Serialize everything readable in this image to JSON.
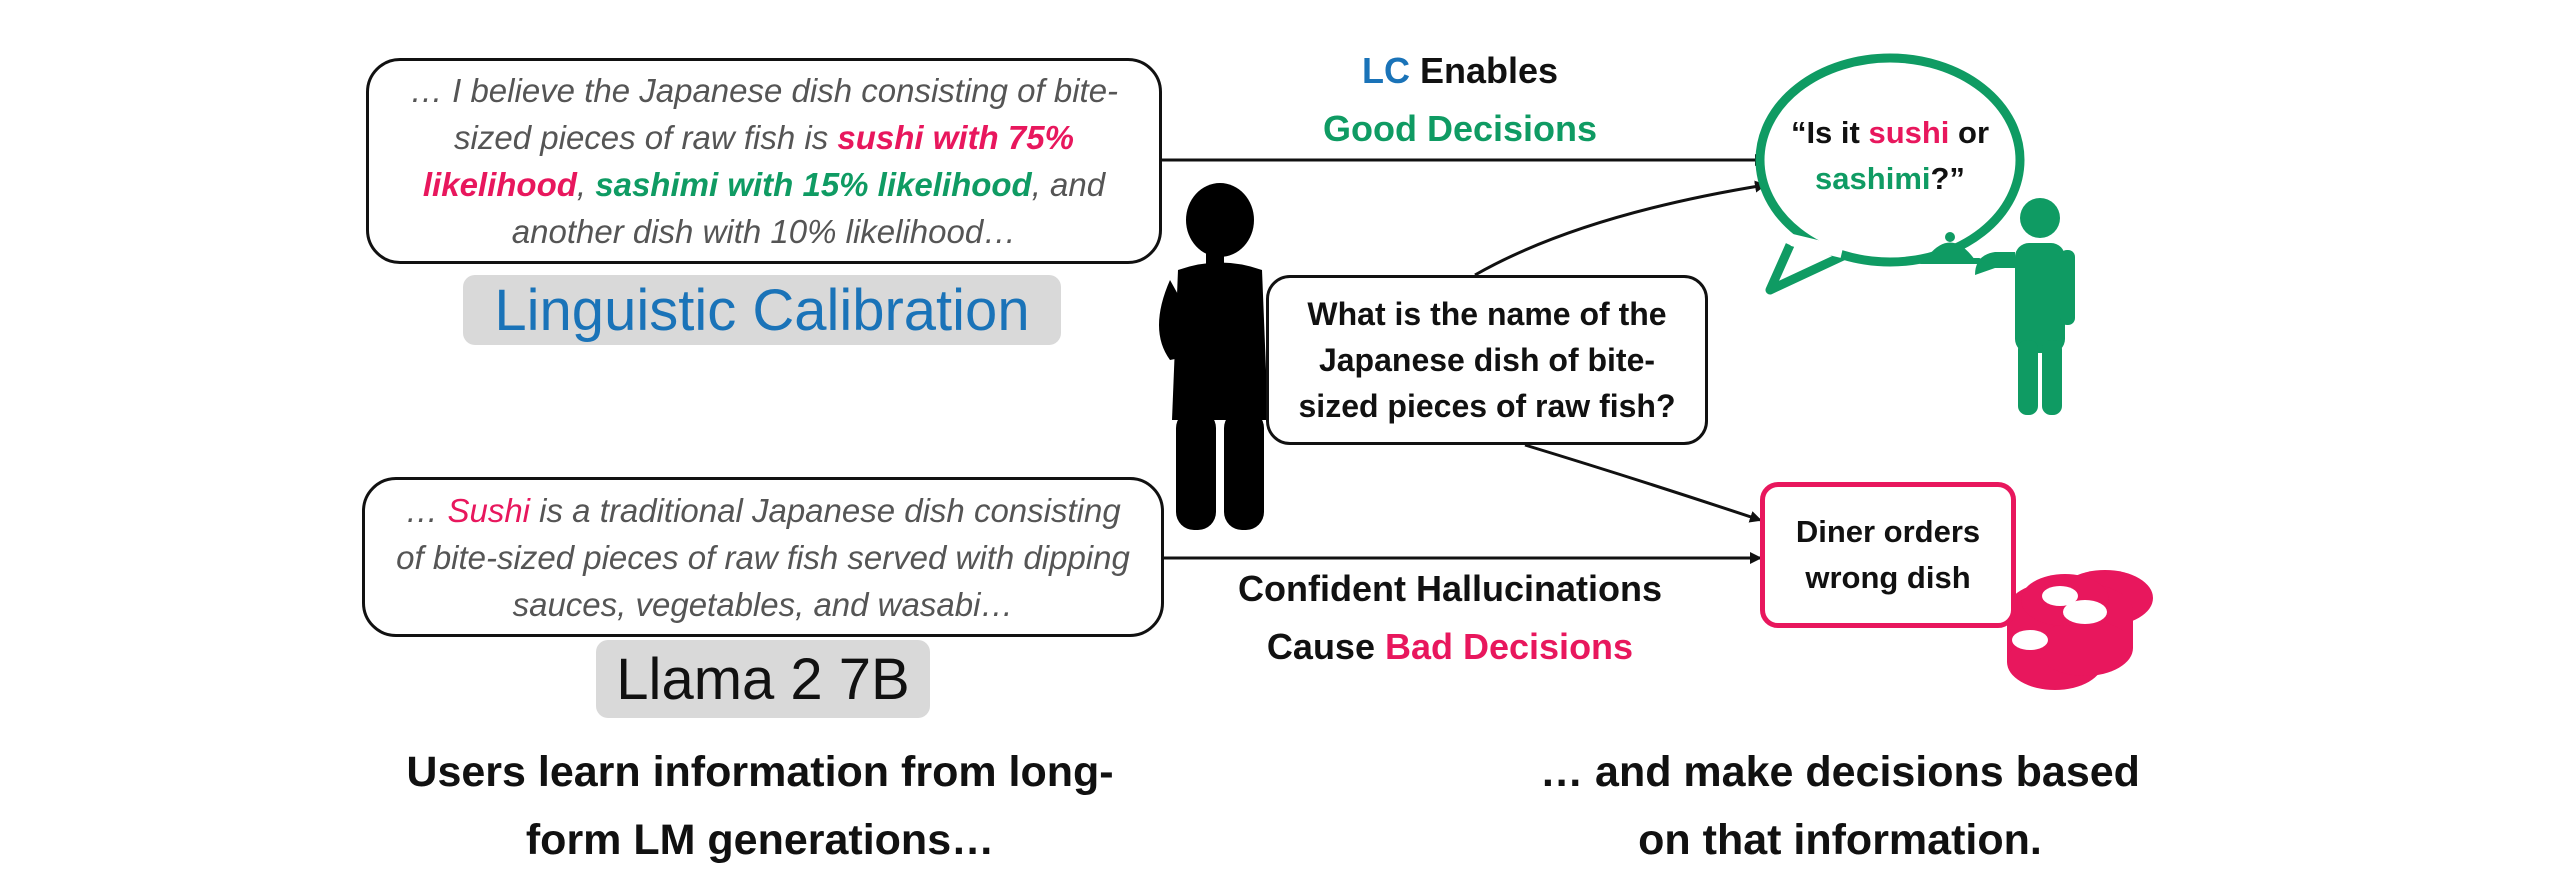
{
  "lc_box": {
    "prefix": "… I believe the Japanese dish consisting of bite-sized pieces of raw fish is ",
    "sushi": "sushi with 75% likelihood",
    "comma": ", ",
    "sashimi": "sashimi with 15% likelihood",
    "suffix": ", and another dish with 10% likelihood…"
  },
  "lc_label": "Linguistic Calibration",
  "llama_box": {
    "prefix": "… ",
    "sushi": "Sushi",
    "suffix": " is a traditional Japanese dish consisting of bite-sized pieces of raw fish served with dipping sauces, vegetables, and wasabi…"
  },
  "llama_label": "Llama 2 7B",
  "question": "What is the name of the Japanese dish of bite-sized pieces of raw fish?",
  "speech": {
    "open": "“Is it ",
    "sushi": "sushi",
    "mid": " or ",
    "sashimi": "sashimi",
    "close": "?”"
  },
  "outcome_bad": "Diner orders wrong dish",
  "top_arrow": {
    "lc": "LC",
    "enables": " Enables",
    "good": "Good Decisions"
  },
  "bottom_arrow": {
    "line1": "Confident Hallucinations",
    "cause": "Cause ",
    "bad": "Bad Decisions"
  },
  "caption_left": "Users learn information from long-form LM generations…",
  "caption_right": "… and make decisions based on that information.",
  "colors": {
    "pink": "#e8175d",
    "green": "#0f9b63",
    "blue": "#1a73b8",
    "label_bg": "#d9d9d9"
  },
  "icons": [
    "thinking-person-icon",
    "waiter-icon",
    "sushi-icon",
    "speech-bubble-icon"
  ]
}
